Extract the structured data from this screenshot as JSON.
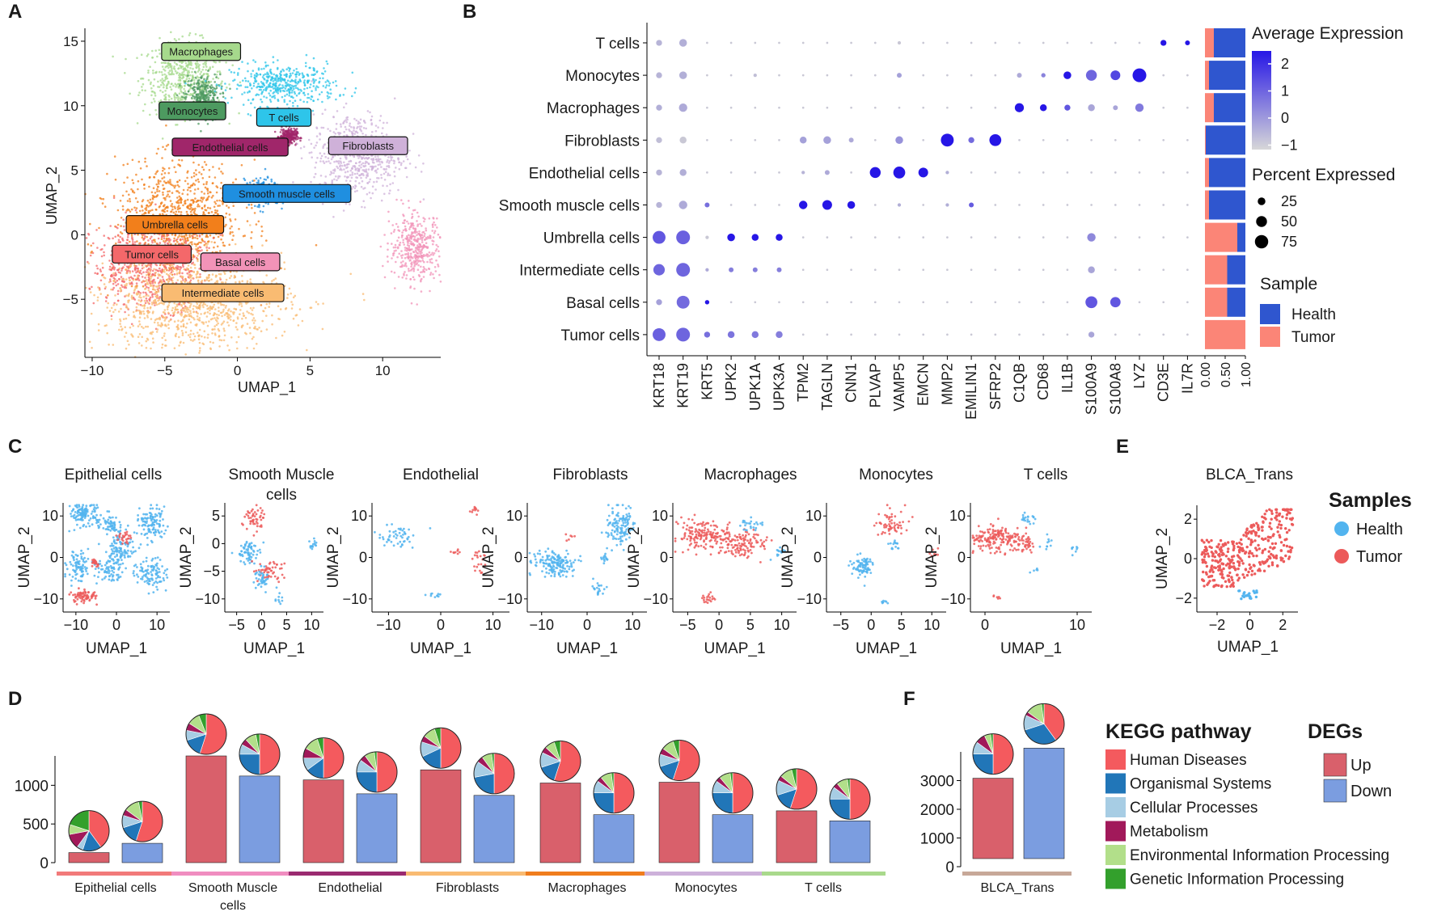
{
  "panel_letters": [
    "A",
    "B",
    "C",
    "D",
    "E",
    "F"
  ],
  "chart_data": [
    {
      "id": "A",
      "type": "scatter",
      "title": "",
      "xlabel": "UMAP_1",
      "ylabel": "UMAP_2",
      "xlim": [
        -10.5,
        14
      ],
      "ylim": [
        -9.5,
        16
      ],
      "xticks": [
        -10,
        -5,
        0,
        5,
        10
      ],
      "yticks": [
        -5,
        0,
        5,
        10,
        15
      ],
      "clusters": [
        {
          "label": "Macrophages",
          "color": "#a6d98c",
          "cx": -3.7,
          "cy": 12.2,
          "sx": 1.4,
          "sy": 1.4,
          "lx": -2.5,
          "ly": 14.2
        },
        {
          "label": "Monocytes",
          "color": "#4d9a60",
          "cx": -2.4,
          "cy": 10.6,
          "sx": 0.6,
          "sy": 0.9,
          "lx": -3.1,
          "ly": 9.6
        },
        {
          "label": "T cells",
          "color": "#2ec5ea",
          "cx": 3.2,
          "cy": 11.6,
          "sx": 1.8,
          "sy": 0.8,
          "lx": 3.2,
          "ly": 9.1
        },
        {
          "label": "Endothelial cells",
          "color": "#a0266a",
          "cx": 3.5,
          "cy": 7.6,
          "sx": 0.3,
          "sy": 0.3,
          "lx": -0.5,
          "ly": 6.8
        },
        {
          "label": "Fibroblasts",
          "color": "#cfb1d9",
          "cx": 8.3,
          "cy": 6.2,
          "sx": 1.6,
          "sy": 1.6,
          "lx": 9.0,
          "ly": 6.9
        },
        {
          "label": "Smooth muscle cells",
          "color": "#1f8fe0",
          "cx": 1.7,
          "cy": 3.3,
          "sx": 0.6,
          "sy": 0.5,
          "lx": 3.4,
          "ly": 3.2
        },
        {
          "label": "Umbrella cells",
          "color": "#f27f1b",
          "cx": -4.0,
          "cy": 1.2,
          "sx": 2.2,
          "sy": 2.2,
          "lx": -4.3,
          "ly": 0.8
        },
        {
          "label": "Tumor cells",
          "color": "#f4686a",
          "cx": -6.0,
          "cy": -2.3,
          "sx": 2.0,
          "sy": 1.7,
          "lx": -5.9,
          "ly": -1.5
        },
        {
          "label": "Basal cells",
          "color": "#f293b8",
          "cx": 12.3,
          "cy": -1.0,
          "sx": 0.9,
          "sy": 1.3,
          "lx": 0.2,
          "ly": -2.1
        },
        {
          "label": "Intermediate cells",
          "color": "#f9bb72",
          "cx": -3.1,
          "cy": -5.2,
          "sx": 3.3,
          "sy": 1.8,
          "lx": -1.0,
          "ly": -4.5
        }
      ]
    },
    {
      "id": "B",
      "type": "dot",
      "genes": [
        "KRT18",
        "KRT19",
        "KRT5",
        "UPK2",
        "UPK1A",
        "UPK3A",
        "TPM2",
        "TAGLN",
        "CNN1",
        "PLVAP",
        "VAMP5",
        "EMCN",
        "MMP2",
        "EMILIN1",
        "SFRP2",
        "C1QB",
        "CD68",
        "IL1B",
        "S100A9",
        "S100A8",
        "LYZ",
        "CD3E",
        "IL7R"
      ],
      "cell_types": [
        "T cells",
        "Monocytes",
        "Macrophages",
        "Fibroblasts",
        "Endothelial cells",
        "Smooth muscle cells",
        "Umbrella cells",
        "Intermediate cells",
        "Basal cells",
        "Tumor cells"
      ],
      "avg_expression": [
        [
          -0.6,
          -0.5,
          -1,
          -1,
          -1,
          -1,
          -1,
          -1,
          -1,
          -1,
          -1,
          -1,
          -1,
          -1,
          -1,
          -1,
          -1,
          -1,
          -1,
          -1,
          -1,
          2.6,
          2.6
        ],
        [
          -0.6,
          -0.5,
          -1,
          -1,
          -0.8,
          -1,
          -1,
          -1,
          -1,
          -1,
          -0.2,
          -1,
          -1,
          -1,
          -1,
          -0.4,
          0.4,
          2.6,
          1.0,
          1.6,
          2.6,
          -1,
          -1
        ],
        [
          -0.5,
          -0.4,
          -1,
          -1,
          -1,
          -1,
          -1,
          -1,
          -1,
          -1,
          -1,
          -1,
          -1,
          -1,
          -1,
          2.6,
          2.6,
          1.3,
          -0.3,
          -0.3,
          0.6,
          -1,
          -1
        ],
        [
          -0.8,
          -1.0,
          -1,
          -1,
          -1,
          -1,
          -0.2,
          -0.2,
          -0.4,
          -1,
          0.1,
          -1,
          2.6,
          0.9,
          2.6,
          -1,
          -1,
          -1,
          -1,
          -1,
          -1,
          -1,
          -1
        ],
        [
          -0.6,
          -0.5,
          -1,
          -1,
          -1,
          -1,
          -0.6,
          -0.4,
          -1,
          2.6,
          2.6,
          2.6,
          -0.5,
          -1,
          -1,
          -1,
          -1,
          -1,
          -1,
          -1,
          -1,
          -1,
          -1
        ],
        [
          -0.6,
          -0.4,
          0.8,
          -1,
          -1,
          -1,
          2.6,
          2.6,
          2.6,
          -1,
          -0.5,
          -1,
          -0.5,
          1.2,
          -1,
          -1,
          -1,
          -1,
          -1,
          -1,
          -1,
          -1,
          -1
        ],
        [
          1.3,
          1.1,
          -1,
          2.6,
          2.6,
          2.6,
          -1,
          -1,
          -1,
          -1,
          -1,
          -1,
          -1,
          -1,
          -1,
          -1,
          -1,
          -1,
          0.3,
          -1,
          -1,
          -1,
          -1
        ],
        [
          1.0,
          1.0,
          -0.4,
          0.5,
          0.5,
          0.5,
          -1,
          -1,
          -1,
          -1,
          -1,
          -1,
          -1,
          -1,
          -1,
          -1,
          -1,
          -1,
          -0.3,
          -1,
          -1,
          -1,
          -1
        ],
        [
          -0.2,
          0.9,
          2.6,
          -1,
          -1,
          -1,
          -1,
          -1,
          -1,
          -1,
          -1,
          -1,
          -1,
          -1,
          -1,
          -1,
          -1,
          -1,
          1.3,
          1.3,
          -1,
          -1,
          -1
        ],
        [
          1.1,
          1.0,
          0.8,
          0.7,
          0.6,
          0.5,
          -1,
          -1,
          -1,
          -1,
          -1,
          -1,
          -1,
          -1,
          -1,
          -1,
          -1,
          -1,
          -0.3,
          -1,
          -1,
          -1,
          -1
        ]
      ],
      "pct_expressed": [
        [
          15,
          25,
          2,
          2,
          2,
          2,
          2,
          2,
          2,
          2,
          5,
          2,
          2,
          2,
          2,
          2,
          2,
          2,
          2,
          2,
          2,
          15,
          10
        ],
        [
          15,
          25,
          2,
          2,
          5,
          2,
          2,
          2,
          2,
          2,
          10,
          2,
          2,
          2,
          2,
          10,
          8,
          25,
          50,
          40,
          80,
          2,
          2
        ],
        [
          15,
          30,
          2,
          2,
          2,
          2,
          2,
          2,
          2,
          2,
          2,
          2,
          2,
          2,
          2,
          35,
          20,
          15,
          20,
          10,
          30,
          2,
          2
        ],
        [
          15,
          20,
          2,
          2,
          2,
          2,
          20,
          25,
          10,
          2,
          25,
          2,
          70,
          15,
          60,
          2,
          2,
          2,
          2,
          2,
          2,
          2,
          2
        ],
        [
          15,
          20,
          2,
          2,
          2,
          2,
          5,
          10,
          2,
          50,
          60,
          40,
          5,
          2,
          2,
          2,
          2,
          2,
          2,
          2,
          2,
          2,
          2
        ],
        [
          15,
          30,
          10,
          2,
          2,
          2,
          30,
          40,
          25,
          2,
          5,
          2,
          5,
          10,
          2,
          2,
          2,
          2,
          2,
          2,
          2,
          2,
          2
        ],
        [
          70,
          80,
          5,
          25,
          20,
          20,
          2,
          2,
          2,
          2,
          2,
          2,
          2,
          2,
          2,
          2,
          2,
          2,
          30,
          2,
          2,
          2,
          2
        ],
        [
          55,
          80,
          5,
          10,
          10,
          10,
          2,
          2,
          2,
          2,
          2,
          2,
          2,
          2,
          2,
          2,
          2,
          2,
          20,
          2,
          2,
          2,
          2
        ],
        [
          15,
          70,
          8,
          2,
          2,
          2,
          2,
          2,
          2,
          2,
          2,
          2,
          2,
          2,
          2,
          2,
          2,
          2,
          60,
          45,
          2,
          2,
          2
        ],
        [
          70,
          80,
          15,
          20,
          20,
          20,
          2,
          2,
          2,
          2,
          2,
          2,
          2,
          2,
          2,
          2,
          2,
          2,
          15,
          2,
          2,
          2,
          2
        ]
      ],
      "sample_bar_axis_ticks": [
        "0.00",
        "0.50",
        "1.00"
      ],
      "sample_fraction_tumor": [
        0.22,
        0.1,
        0.22,
        0.02,
        0.1,
        0.1,
        0.8,
        0.55,
        0.55,
        1.0
      ],
      "legend_avg_title": "Average Expression",
      "legend_avg_ticks": [
        "2",
        "1",
        "0",
        "−1"
      ],
      "legend_pct_title": "Percent Expressed",
      "legend_pct_values": [
        "25",
        "50",
        "75"
      ],
      "legend_sample_title": "Sample",
      "legend_samples": [
        {
          "label": "Health",
          "color": "#2f56cf"
        },
        {
          "label": "Tumor",
          "color": "#fb8577"
        }
      ]
    },
    {
      "id": "C",
      "type": "scatter",
      "xlabel": "UMAP_1",
      "ylabel": "UMAP_2",
      "colors": {
        "health": "#52b4ef",
        "tumor": "#ec5a5a"
      },
      "subplots": [
        {
          "title": "Epithelial cells",
          "title2": "",
          "xticks": [
            "−10",
            "0",
            "10"
          ],
          "yticks": [
            "10",
            "0",
            "−10"
          ]
        },
        {
          "title": "Smooth Muscle",
          "title2": "cells",
          "xticks": [
            "−5",
            "0",
            "5",
            "10"
          ],
          "yticks": [
            "5",
            "0",
            "−5",
            "−10"
          ]
        },
        {
          "title": "Endothelial",
          "title2": "",
          "xticks": [
            "−10",
            "0",
            "10"
          ],
          "yticks": [
            "10",
            "0",
            "−10"
          ]
        },
        {
          "title": "Fibroblasts",
          "title2": "",
          "xticks": [
            "−10",
            "0",
            "10"
          ],
          "yticks": [
            "10",
            "0",
            "−10"
          ]
        },
        {
          "title": "Macrophages",
          "title2": "",
          "xticks": [
            "−5",
            "0",
            "5",
            "10"
          ],
          "yticks": [
            "10",
            "0",
            "−10"
          ]
        },
        {
          "title": "Monocytes",
          "title2": "",
          "xticks": [
            "−5",
            "0",
            "5",
            "10"
          ],
          "yticks": [
            "10",
            "0",
            "−10"
          ]
        },
        {
          "title": "T cells",
          "title2": "",
          "xticks": [
            "0",
            "10"
          ],
          "yticks": [
            "10",
            "0",
            "−10"
          ]
        }
      ]
    },
    {
      "id": "D",
      "type": "bar",
      "categories": [
        "Epithelial cells",
        "Smooth Muscle cells",
        "Endothelial",
        "Fibroblasts",
        "Macrophages",
        "Monocytes",
        "T cells"
      ],
      "category_lines": [
        [
          "Epithelial cells"
        ],
        [
          "Smooth Muscle",
          "cells"
        ],
        [
          "Endothelial"
        ],
        [
          "Fibroblasts"
        ],
        [
          "Macrophages"
        ],
        [
          "Monocytes"
        ],
        [
          "T cells"
        ]
      ],
      "category_colors": [
        "#f27a7a",
        "#f08dc0",
        "#9a2a70",
        "#f9bb72",
        "#f07d1d",
        "#cdb1da",
        "#a9d98c"
      ],
      "series": [
        {
          "name": "Up",
          "color": "#d9606b",
          "values": [
            130,
            1380,
            1070,
            1200,
            1030,
            1040,
            670
          ]
        },
        {
          "name": "Down",
          "color": "#7b9de0",
          "values": [
            250,
            1120,
            890,
            870,
            620,
            620,
            540
          ]
        }
      ],
      "ylim": [
        0,
        1450
      ],
      "yticks": [
        0,
        500,
        1000
      ]
    },
    {
      "id": "E",
      "type": "scatter",
      "title": "BLCA_Trans",
      "xlabel": "UMAP_1",
      "ylabel": "UMAP_2",
      "xticks": [
        "−2",
        "0",
        "2"
      ],
      "yticks": [
        "2",
        "0",
        "−2"
      ],
      "legend_title": "Samples",
      "legend": [
        {
          "label": "Health",
          "color": "#52b4ef"
        },
        {
          "label": "Tumor",
          "color": "#ec5a5a"
        }
      ]
    },
    {
      "id": "F",
      "type": "bar",
      "categories": [
        "BLCA_Trans"
      ],
      "category_colors": [
        "#c7a898"
      ],
      "series": [
        {
          "name": "Up",
          "color": "#d9606b",
          "values": [
            2800
          ]
        },
        {
          "name": "Down",
          "color": "#7b9de0",
          "values": [
            3850
          ]
        }
      ],
      "ylim": [
        0,
        4000
      ],
      "yticks": [
        0,
        1000,
        2000,
        3000
      ]
    },
    {
      "id": "DF-pies",
      "type": "pie",
      "pathways": [
        {
          "label": "Human Diseases",
          "color": "#f45a5e"
        },
        {
          "label": "Organismal Systems",
          "color": "#2176b8"
        },
        {
          "label": "Cellular Processes",
          "color": "#a7cde4"
        },
        {
          "label": "Metabolism",
          "color": "#a1195a"
        },
        {
          "label": "Environmental Information Processing",
          "color": "#b2df8a"
        },
        {
          "label": "Genetic Information Processing",
          "color": "#33a02c"
        }
      ],
      "legend_title": "KEGG pathway",
      "degs_title": "DEGs",
      "degs": [
        {
          "label": "Up",
          "color": "#d9606b"
        },
        {
          "label": "Down",
          "color": "#7b9de0"
        }
      ],
      "D_up": [
        [
          40,
          15,
          5,
          12,
          8,
          20
        ],
        [
          55,
          15,
          8,
          6,
          10,
          6
        ],
        [
          50,
          15,
          10,
          8,
          12,
          5
        ],
        [
          50,
          18,
          12,
          5,
          10,
          5
        ],
        [
          55,
          15,
          12,
          5,
          8,
          5
        ],
        [
          55,
          15,
          10,
          5,
          10,
          5
        ],
        [
          55,
          15,
          12,
          4,
          10,
          4
        ]
      ],
      "D_down": [
        [
          55,
          15,
          10,
          5,
          12,
          3
        ],
        [
          50,
          25,
          8,
          5,
          9,
          3
        ],
        [
          50,
          25,
          10,
          5,
          8,
          2
        ],
        [
          50,
          22,
          13,
          5,
          8,
          2
        ],
        [
          50,
          25,
          10,
          4,
          9,
          2
        ],
        [
          50,
          25,
          10,
          4,
          9,
          2
        ],
        [
          50,
          25,
          10,
          4,
          9,
          2
        ]
      ],
      "F_up": [
        50,
        25,
        10,
        8,
        5,
        2
      ],
      "F_down": [
        40,
        30,
        12,
        3,
        13,
        2
      ]
    }
  ]
}
